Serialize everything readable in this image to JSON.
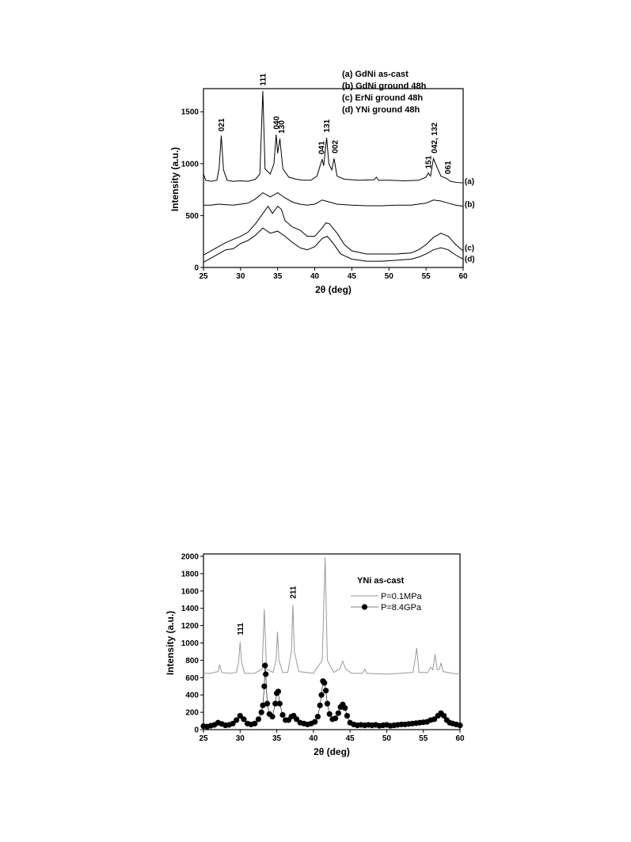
{
  "chart_data": [
    {
      "type": "line",
      "xlabel": "2θ (deg)",
      "ylabel": "Intensity (a.u.)",
      "xlim": [
        25,
        60
      ],
      "ylim": [
        0,
        1700
      ],
      "xticks": [
        25,
        30,
        35,
        40,
        45,
        50,
        55,
        60
      ],
      "yticks": [
        0,
        500,
        1000,
        1500
      ],
      "legend_symbols": false,
      "series": [
        {
          "name": "(a) GdNi as-cast",
          "color": "#000000",
          "x": [
            25,
            25.3,
            26,
            26.8,
            27.1,
            27.4,
            27.7,
            28.2,
            29,
            30,
            31,
            32,
            32.6,
            33.0,
            33.3,
            34,
            34.5,
            34.8,
            35.0,
            35.3,
            35.7,
            36.5,
            37.5,
            38.5,
            39.5,
            40.3,
            40.8,
            41.0,
            41.2,
            41.6,
            41.9,
            42.3,
            42.6,
            43,
            44,
            46,
            48,
            48.3,
            48.6,
            50,
            52,
            54,
            55,
            55.3,
            55.6,
            56.0,
            56.4,
            57,
            57.7,
            58.3,
            59,
            60
          ],
          "values": [
            900,
            840,
            830,
            840,
            950,
            1270,
            940,
            840,
            830,
            835,
            830,
            850,
            900,
            1700,
            950,
            900,
            1000,
            1280,
            1100,
            1240,
            950,
            870,
            850,
            840,
            840,
            880,
            1000,
            1040,
            980,
            1250,
            1000,
            940,
            1050,
            880,
            850,
            840,
            845,
            870,
            840,
            840,
            835,
            840,
            870,
            910,
            880,
            1050,
            980,
            880,
            860,
            830,
            820,
            815
          ]
        },
        {
          "name": "(b) GdNi ground 48h",
          "color": "#000000",
          "x": [
            25,
            26,
            27,
            28,
            29,
            30,
            31,
            32,
            33,
            33.5,
            34,
            35,
            36,
            37,
            38,
            39,
            40,
            41,
            42,
            43,
            45,
            47,
            49,
            51,
            53,
            55,
            56,
            57,
            58,
            59,
            60
          ],
          "values": [
            600,
            600,
            610,
            605,
            600,
            610,
            620,
            660,
            720,
            700,
            680,
            720,
            670,
            630,
            610,
            600,
            610,
            650,
            630,
            610,
            600,
            595,
            595,
            600,
            600,
            620,
            650,
            640,
            620,
            600,
            590
          ]
        },
        {
          "name": "(c) ErNi ground 48h",
          "color": "#000000",
          "x": [
            25,
            26,
            27,
            28,
            29,
            30,
            31,
            32,
            33,
            33.7,
            34.3,
            35,
            35.5,
            36,
            37,
            38,
            39,
            40,
            41,
            41.5,
            42,
            43,
            44,
            45,
            47,
            49,
            51,
            53,
            54,
            55,
            56,
            57,
            58,
            59,
            60
          ],
          "values": [
            120,
            160,
            200,
            240,
            270,
            300,
            340,
            420,
            520,
            590,
            520,
            590,
            560,
            450,
            390,
            360,
            300,
            300,
            380,
            430,
            420,
            330,
            220,
            160,
            130,
            130,
            130,
            140,
            170,
            220,
            290,
            330,
            300,
            220,
            160
          ]
        },
        {
          "name": "(d) YNi ground 48h",
          "color": "#000000",
          "x": [
            25,
            26,
            27,
            28,
            29,
            30,
            31,
            32,
            33,
            34,
            35,
            36,
            37,
            38,
            39,
            40,
            41,
            41.7,
            42.5,
            43.5,
            45,
            47,
            49,
            51,
            53,
            54,
            55,
            56,
            57,
            58,
            59,
            60
          ],
          "values": [
            50,
            90,
            130,
            170,
            180,
            230,
            260,
            310,
            380,
            330,
            350,
            300,
            240,
            190,
            170,
            200,
            280,
            300,
            230,
            130,
            80,
            60,
            60,
            70,
            80,
            100,
            130,
            170,
            190,
            170,
            120,
            80
          ]
        }
      ],
      "peak_labels": [
        {
          "text": "021",
          "x": 27.4,
          "y": 1310
        },
        {
          "text": "111",
          "x": 33.0,
          "y": 1750
        },
        {
          "text": "040",
          "x": 34.8,
          "y": 1330
        },
        {
          "text": "130",
          "x": 35.5,
          "y": 1290
        },
        {
          "text": "041",
          "x": 40.9,
          "y": 1090
        },
        {
          "text": "131",
          "x": 41.6,
          "y": 1300
        },
        {
          "text": "002",
          "x": 42.7,
          "y": 1100
        },
        {
          "text": "151",
          "x": 55.3,
          "y": 950
        },
        {
          "text": "042, 132",
          "x": 56.1,
          "y": 1100
        },
        {
          "text": "061",
          "x": 57.9,
          "y": 900
        }
      ],
      "curve_labels": [
        {
          "text": "(a)",
          "x": 60.2,
          "y": 830
        },
        {
          "text": "(b)",
          "x": 60.2,
          "y": 610
        },
        {
          "text": "(c)",
          "x": 60.2,
          "y": 190
        },
        {
          "text": "(d)",
          "x": 60.2,
          "y": 85
        }
      ]
    },
    {
      "type": "line",
      "xlabel": "2θ (deg)",
      "ylabel": "Intensity (a.u.)",
      "xlim": [
        25,
        60
      ],
      "ylim": [
        0,
        2000
      ],
      "xticks": [
        25,
        30,
        35,
        40,
        45,
        50,
        55,
        60
      ],
      "yticks": [
        0,
        200,
        400,
        600,
        800,
        1000,
        1200,
        1400,
        1600,
        1800,
        2000
      ],
      "legend_symbols": true,
      "legend_title": "YNi as-cast",
      "series": [
        {
          "name": "P=0.1MPa",
          "color": "#999999",
          "x": [
            25,
            26,
            27,
            27.2,
            27.5,
            28.5,
            29.5,
            29.8,
            30.0,
            30.2,
            30.6,
            32,
            33.0,
            33.3,
            33.6,
            34.5,
            34.9,
            35.1,
            35.3,
            35.8,
            36.5,
            37.0,
            37.2,
            37.4,
            38,
            40,
            41.2,
            41.6,
            41.9,
            42.8,
            43.6,
            44.0,
            44.4,
            45.2,
            46.7,
            47.0,
            47.3,
            50,
            53.6,
            54.1,
            54.4,
            55.6,
            56.0,
            56.3,
            56.6,
            56.9,
            57.2,
            57.4,
            57.7,
            59,
            60
          ],
          "values": [
            650,
            650,
            670,
            750,
            660,
            650,
            660,
            780,
            1010,
            780,
            650,
            650,
            700,
            1390,
            700,
            660,
            800,
            1130,
            800,
            660,
            660,
            900,
            1440,
            900,
            670,
            650,
            800,
            1990,
            800,
            660,
            700,
            790,
            700,
            650,
            650,
            700,
            650,
            640,
            660,
            940,
            660,
            660,
            720,
            690,
            870,
            690,
            700,
            770,
            670,
            650,
            640
          ]
        },
        {
          "name": "P=8.4GPa",
          "color": "#000000",
          "marker": "circle",
          "x": [
            25,
            25.5,
            26,
            26.5,
            27,
            27.5,
            28,
            28.5,
            29,
            29.5,
            30,
            30.5,
            31,
            31.5,
            32,
            32.5,
            32.9,
            33.1,
            33.3,
            33.4,
            33.5,
            33.7,
            34,
            34.4,
            34.8,
            35.0,
            35.2,
            35.4,
            35.8,
            36.2,
            36.6,
            37.0,
            37.3,
            37.7,
            38.2,
            38.7,
            39.2,
            39.7,
            40.2,
            40.6,
            40.9,
            41.1,
            41.3,
            41.5,
            41.7,
            41.9,
            42.2,
            42.6,
            43,
            43.4,
            43.7,
            44.0,
            44.3,
            44.6,
            45,
            45.5,
            46,
            46.5,
            47,
            47.5,
            48,
            48.5,
            49,
            49.5,
            50,
            50.5,
            51,
            51.5,
            52,
            52.5,
            53,
            53.5,
            54,
            54.5,
            55,
            55.5,
            56,
            56.5,
            57,
            57.4,
            57.8,
            58.2,
            58.6,
            59,
            59.5,
            60
          ],
          "values": [
            40,
            35,
            45,
            55,
            80,
            65,
            50,
            55,
            70,
            110,
            160,
            120,
            70,
            60,
            70,
            120,
            200,
            280,
            500,
            740,
            640,
            300,
            180,
            150,
            300,
            420,
            440,
            300,
            170,
            110,
            110,
            150,
            160,
            120,
            80,
            70,
            60,
            70,
            90,
            150,
            280,
            400,
            560,
            540,
            450,
            300,
            180,
            120,
            130,
            190,
            260,
            290,
            250,
            160,
            80,
            60,
            50,
            55,
            50,
            55,
            50,
            55,
            45,
            50,
            55,
            45,
            50,
            55,
            60,
            60,
            65,
            70,
            75,
            80,
            85,
            90,
            110,
            120,
            160,
            190,
            160,
            110,
            80,
            70,
            60,
            50
          ]
        }
      ],
      "peak_labels": [
        {
          "text": "111",
          "x": 30.0,
          "y": 1090
        },
        {
          "text": "211",
          "x": 37.2,
          "y": 1510
        }
      ]
    }
  ]
}
